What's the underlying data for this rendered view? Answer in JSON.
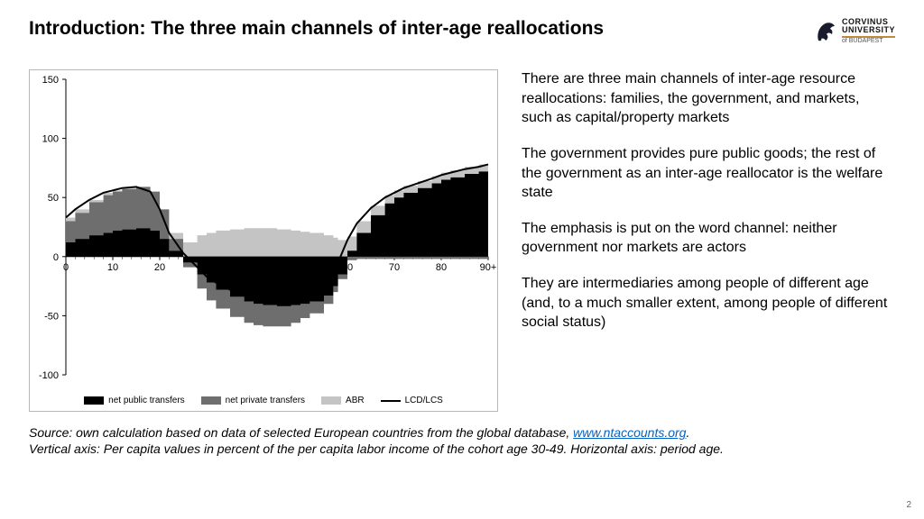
{
  "title": "Introduction: The three main channels of inter-age reallocations",
  "logo": {
    "name": "CORVINUS",
    "line2": "UNIVERSITY",
    "sub": "of BUDAPEST"
  },
  "paragraphs": [
    "There are three main channels of inter-age resource reallocations: families, the government, and markets, such as capital/property markets",
    "The government provides pure public goods; the rest of the government as an inter-age reallocator is the welfare state",
    "The emphasis is put on the word channel: neither government nor markets are actors",
    "They are intermediaries among people of different age (and, to a much smaller extent, among people of different social status)"
  ],
  "source": {
    "pre": "Source: own calculation based on data of selected European countries from the global database, ",
    "link_text": "www.ntaccounts.org",
    "post": ".",
    "line2": "Vertical axis: Per capita values in percent of the per capita labor income of the cohort age 30-49. Horizontal axis: period age."
  },
  "page_number": "2",
  "chart": {
    "type": "stacked-area-with-line",
    "ylim": [
      -100,
      150
    ],
    "yticks": [
      -100,
      -50,
      0,
      50,
      100,
      150
    ],
    "xlim": [
      0,
      90
    ],
    "xticks": [
      0,
      10,
      20,
      30,
      40,
      50,
      60,
      70,
      80,
      90
    ],
    "xtick_labels": [
      "0",
      "10",
      "20",
      "30",
      "40",
      "50",
      "60",
      "70",
      "80",
      "90+"
    ],
    "background_color": "#ffffff",
    "axis_color": "#000000",
    "series": {
      "net_public_transfers": {
        "label": "net public transfers",
        "color": "#000000",
        "x": [
          0,
          2,
          5,
          8,
          10,
          12,
          15,
          18,
          20,
          22,
          25,
          28,
          30,
          32,
          35,
          38,
          40,
          42,
          45,
          48,
          50,
          52,
          55,
          57,
          58,
          60,
          62,
          65,
          68,
          70,
          72,
          75,
          78,
          80,
          82,
          85,
          88,
          90
        ],
        "y": [
          12,
          15,
          18,
          20,
          22,
          23,
          24,
          22,
          15,
          5,
          -5,
          -15,
          -22,
          -28,
          -34,
          -38,
          -40,
          -41,
          -42,
          -41,
          -40,
          -38,
          -33,
          -25,
          -15,
          5,
          20,
          35,
          45,
          50,
          54,
          58,
          62,
          65,
          67,
          70,
          72,
          74
        ]
      },
      "net_private_transfers": {
        "label": "net private transfers",
        "color": "#6e6e6e",
        "x": [
          0,
          2,
          5,
          8,
          10,
          12,
          15,
          18,
          20,
          22,
          25,
          28,
          30,
          32,
          35,
          38,
          40,
          42,
          45,
          48,
          50,
          52,
          55,
          57,
          58,
          60,
          62,
          65,
          68,
          70,
          72,
          75,
          78,
          80,
          82,
          85,
          88,
          90
        ],
        "y": [
          18,
          22,
          28,
          32,
          33,
          34,
          35,
          33,
          25,
          10,
          -4,
          -12,
          -15,
          -16,
          -17,
          -18,
          -18,
          -18,
          -17,
          -15,
          -12,
          -10,
          -7,
          -5,
          -4,
          -3,
          -2,
          -2,
          -2,
          -2,
          -2,
          -2,
          -2,
          -2,
          -2,
          -2,
          -2,
          -2
        ]
      },
      "abr": {
        "label": "ABR",
        "color": "#c4c4c4",
        "x": [
          0,
          2,
          5,
          8,
          10,
          12,
          15,
          18,
          20,
          22,
          25,
          28,
          30,
          32,
          35,
          38,
          40,
          42,
          45,
          48,
          50,
          52,
          55,
          57,
          58,
          60,
          62,
          65,
          68,
          70,
          72,
          75,
          78,
          80,
          82,
          85,
          88,
          90
        ],
        "y": [
          3,
          3,
          2,
          2,
          1,
          1,
          0,
          0,
          0,
          5,
          12,
          18,
          20,
          22,
          23,
          24,
          24,
          24,
          23,
          22,
          21,
          20,
          18,
          16,
          14,
          12,
          10,
          8,
          7,
          6,
          6,
          6,
          6,
          6,
          6,
          6,
          6,
          6
        ]
      },
      "lcd_lcs": {
        "label": "LCD/LCS",
        "color": "#000000",
        "line_width": 2,
        "x": [
          0,
          2,
          5,
          8,
          10,
          12,
          15,
          18,
          20,
          22,
          25,
          28,
          30,
          32,
          35,
          38,
          40,
          42,
          45,
          48,
          50,
          52,
          55,
          57,
          58,
          60,
          62,
          65,
          68,
          70,
          72,
          75,
          78,
          80,
          82,
          85,
          88,
          90
        ],
        "y": [
          33,
          40,
          48,
          54,
          56,
          58,
          59,
          55,
          40,
          20,
          3,
          -9,
          -17,
          -22,
          -28,
          -32,
          -34,
          -35,
          -36,
          -34,
          -31,
          -28,
          -22,
          -14,
          -5,
          14,
          28,
          41,
          50,
          54,
          58,
          62,
          66,
          69,
          71,
          74,
          76,
          78
        ]
      }
    },
    "legend_order": [
      "net_public_transfers",
      "net_private_transfers",
      "abr",
      "lcd_lcs"
    ]
  }
}
